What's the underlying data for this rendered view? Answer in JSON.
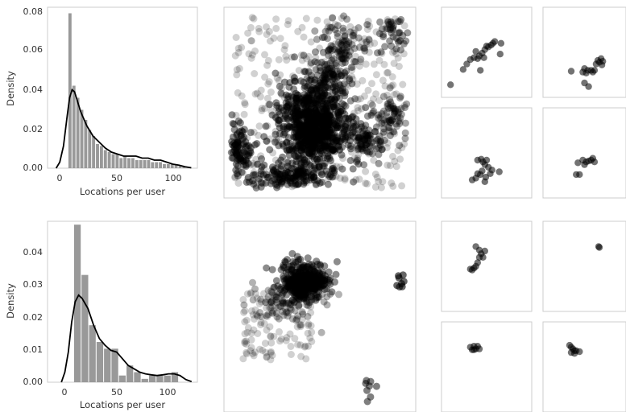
{
  "chart_data": [
    {
      "type": "bar",
      "panel": "top-left",
      "subtype": "histogram with KDE line",
      "xlabel": "Locations per user",
      "ylabel": "Density",
      "xlim": [
        -7,
        115
      ],
      "ylim": [
        0,
        0.08
      ],
      "xticks": [
        "0",
        "50",
        "100"
      ],
      "yticks": [
        "0.00",
        "0.02",
        "0.04",
        "0.06",
        "0.08"
      ],
      "bin_edges": [
        10,
        13.2,
        16.4,
        19.6,
        22.8,
        26,
        29.2,
        32.4,
        35.6,
        38.8,
        42,
        45.2,
        48.4,
        51.6,
        54.8,
        58,
        61.2,
        64.4,
        67.6,
        70.8,
        74,
        77.2,
        80.4,
        83.6,
        86.8,
        90,
        93.2,
        96.4,
        99.6,
        102.8,
        106
      ],
      "values": [
        0.077,
        0.041,
        0.035,
        0.029,
        0.024,
        0.019,
        0.016,
        0.012,
        0.011,
        0.009,
        0.008,
        0.007,
        0.007,
        0.005,
        0.006,
        0.005,
        0.005,
        0.004,
        0.004,
        0.004,
        0.004,
        0.003,
        0.003,
        0.003,
        0.002,
        0.002,
        0.002,
        0.002,
        0.001,
        0.001
      ],
      "kde": {
        "x": [
          0,
          3,
          6,
          9,
          11,
          13,
          15,
          17,
          20,
          25,
          30,
          35,
          40,
          45,
          50,
          55,
          60,
          65,
          70,
          75,
          80,
          85,
          90,
          95,
          100,
          105,
          110
        ],
        "y": [
          0.0,
          0.003,
          0.011,
          0.026,
          0.035,
          0.039,
          0.038,
          0.034,
          0.028,
          0.021,
          0.016,
          0.013,
          0.01,
          0.008,
          0.007,
          0.006,
          0.006,
          0.006,
          0.005,
          0.005,
          0.004,
          0.004,
          0.003,
          0.002,
          0.0015,
          0.0007,
          0.0002
        ]
      },
      "bar_color": "#999999",
      "line_color": "#000000",
      "grid": false
    },
    {
      "type": "bar",
      "panel": "bottom-left",
      "subtype": "histogram with KDE line",
      "xlabel": "Locations per user",
      "ylabel": "Density",
      "xlim": [
        -10,
        120
      ],
      "ylim": [
        0,
        0.048
      ],
      "xticks": [
        "0",
        "50",
        "100"
      ],
      "yticks": [
        "0.00",
        "0.01",
        "0.02",
        "0.03",
        "0.04"
      ],
      "bin_edges": [
        13,
        19.5,
        26,
        32.5,
        39,
        45.5,
        52,
        58.5,
        65,
        71.5,
        78,
        84.5,
        91,
        97.5,
        104
      ],
      "values": [
        0.047,
        0.032,
        0.017,
        0.012,
        0.01,
        0.01,
        0.002,
        0.005,
        0.003,
        0.001,
        0.002,
        0.002,
        0.002,
        0.003
      ],
      "kde": {
        "x": [
          2,
          5,
          8,
          11,
          14,
          17,
          20,
          25,
          30,
          35,
          40,
          45,
          50,
          55,
          60,
          65,
          70,
          75,
          80,
          85,
          90,
          95,
          100,
          105,
          110,
          115
        ],
        "y": [
          0.0,
          0.003,
          0.009,
          0.018,
          0.024,
          0.026,
          0.025,
          0.022,
          0.017,
          0.013,
          0.011,
          0.0095,
          0.009,
          0.007,
          0.005,
          0.004,
          0.003,
          0.0025,
          0.0022,
          0.002,
          0.0022,
          0.0025,
          0.0025,
          0.002,
          0.0008,
          0.0002
        ]
      },
      "bar_color": "#999999",
      "line_color": "#000000",
      "grid": false
    },
    {
      "type": "scatter",
      "panel": "top-middle",
      "axes": "hidden",
      "clusters": [
        {
          "cx": 0.45,
          "cy": 0.6,
          "sx": 0.08,
          "sy": 0.1,
          "n": 520,
          "alpha": 0.45
        },
        {
          "cx": 0.5,
          "cy": 0.66,
          "sx": 0.1,
          "sy": 0.08,
          "n": 260,
          "alpha": 0.45
        },
        {
          "cx": 0.55,
          "cy": 0.38,
          "sx": 0.06,
          "sy": 0.1,
          "n": 160,
          "alpha": 0.4
        },
        {
          "cx": 0.36,
          "cy": 0.88,
          "sx": 0.12,
          "sy": 0.03,
          "n": 160,
          "alpha": 0.45
        },
        {
          "cx": 0.08,
          "cy": 0.74,
          "sx": 0.03,
          "sy": 0.06,
          "n": 90,
          "alpha": 0.45
        },
        {
          "cx": 0.75,
          "cy": 0.69,
          "sx": 0.05,
          "sy": 0.05,
          "n": 80,
          "alpha": 0.4
        },
        {
          "cx": 0.88,
          "cy": 0.55,
          "sx": 0.04,
          "sy": 0.06,
          "n": 60,
          "alpha": 0.35
        },
        {
          "cx": 0.62,
          "cy": 0.18,
          "sx": 0.06,
          "sy": 0.06,
          "n": 60,
          "alpha": 0.35
        },
        {
          "cx": 0.88,
          "cy": 0.15,
          "sx": 0.05,
          "sy": 0.05,
          "n": 40,
          "alpha": 0.4
        },
        {
          "cx": 0.5,
          "cy": 0.5,
          "sx": 0.45,
          "sy": 0.45,
          "n": 360,
          "alpha": 0.18,
          "uniform": true
        }
      ]
    },
    {
      "type": "scatter",
      "panel": "bottom-middle",
      "axes": "hidden",
      "clusters": [
        {
          "cx": 0.42,
          "cy": 0.32,
          "sx": 0.06,
          "sy": 0.05,
          "n": 380,
          "alpha": 0.45
        },
        {
          "cx": 0.35,
          "cy": 0.42,
          "sx": 0.1,
          "sy": 0.06,
          "n": 90,
          "alpha": 0.3
        },
        {
          "cx": 0.92,
          "cy": 0.31,
          "sx": 0.01,
          "sy": 0.02,
          "n": 8,
          "alpha": 0.6
        },
        {
          "cx": 0.76,
          "cy": 0.88,
          "sx": 0.02,
          "sy": 0.04,
          "n": 8,
          "alpha": 0.5
        },
        {
          "cx": 0.28,
          "cy": 0.55,
          "sx": 0.18,
          "sy": 0.18,
          "n": 110,
          "alpha": 0.18,
          "uniform": true
        }
      ]
    },
    {
      "type": "scatter",
      "panel": "top-right-1",
      "axes": "hidden",
      "points": [
        [
          0.1,
          0.86
        ],
        [
          0.24,
          0.69
        ],
        [
          0.28,
          0.63
        ],
        [
          0.32,
          0.58
        ],
        [
          0.36,
          0.56
        ],
        [
          0.4,
          0.57
        ],
        [
          0.42,
          0.54
        ],
        [
          0.45,
          0.51
        ],
        [
          0.48,
          0.47
        ],
        [
          0.5,
          0.43
        ],
        [
          0.52,
          0.44
        ],
        [
          0.55,
          0.42
        ],
        [
          0.57,
          0.4
        ],
        [
          0.59,
          0.38
        ],
        [
          0.47,
          0.56
        ],
        [
          0.43,
          0.7
        ],
        [
          0.65,
          0.52
        ],
        [
          0.38,
          0.49
        ],
        [
          0.66,
          0.4
        ]
      ]
    },
    {
      "type": "scatter",
      "panel": "top-right-2",
      "axes": "hidden",
      "points": [
        [
          0.34,
          0.71
        ],
        [
          0.48,
          0.72
        ],
        [
          0.5,
          0.68
        ],
        [
          0.52,
          0.73
        ],
        [
          0.54,
          0.7
        ],
        [
          0.58,
          0.7
        ],
        [
          0.6,
          0.72
        ],
        [
          0.62,
          0.7
        ],
        [
          0.66,
          0.59
        ],
        [
          0.7,
          0.57
        ],
        [
          0.68,
          0.61
        ],
        [
          0.72,
          0.6
        ],
        [
          0.64,
          0.63
        ],
        [
          0.71,
          0.64
        ],
        [
          0.5,
          0.84
        ],
        [
          0.55,
          0.88
        ]
      ]
    },
    {
      "type": "scatter",
      "panel": "mid-right-1",
      "axes": "hidden",
      "points": [
        [
          0.4,
          0.58
        ],
        [
          0.44,
          0.57
        ],
        [
          0.46,
          0.6
        ],
        [
          0.48,
          0.63
        ],
        [
          0.5,
          0.58
        ],
        [
          0.52,
          0.66
        ],
        [
          0.4,
          0.73
        ],
        [
          0.43,
          0.74
        ],
        [
          0.45,
          0.7
        ],
        [
          0.49,
          0.77
        ],
        [
          0.54,
          0.73
        ],
        [
          0.56,
          0.69
        ],
        [
          0.34,
          0.8
        ],
        [
          0.38,
          0.78
        ],
        [
          0.64,
          0.71
        ],
        [
          0.48,
          0.82
        ]
      ]
    },
    {
      "type": "scatter",
      "panel": "mid-right-2",
      "axes": "hidden",
      "points": [
        [
          0.4,
          0.74
        ],
        [
          0.42,
          0.61
        ],
        [
          0.48,
          0.58
        ],
        [
          0.52,
          0.6
        ],
        [
          0.55,
          0.59
        ],
        [
          0.58,
          0.58
        ],
        [
          0.6,
          0.56
        ],
        [
          0.62,
          0.6
        ],
        [
          0.44,
          0.74
        ],
        [
          0.5,
          0.63
        ]
      ]
    },
    {
      "type": "scatter",
      "panel": "bottom-right-1",
      "axes": "hidden",
      "points": [
        [
          0.38,
          0.28
        ],
        [
          0.42,
          0.32
        ],
        [
          0.44,
          0.36
        ],
        [
          0.46,
          0.4
        ],
        [
          0.4,
          0.46
        ],
        [
          0.38,
          0.5
        ],
        [
          0.34,
          0.54
        ],
        [
          0.36,
          0.52
        ],
        [
          0.48,
          0.33
        ],
        [
          0.42,
          0.4
        ],
        [
          0.32,
          0.53
        ]
      ]
    },
    {
      "type": "scatter",
      "panel": "bottom-right-2",
      "axes": "hidden",
      "points": [
        [
          0.67,
          0.28
        ],
        [
          0.68,
          0.29
        ]
      ]
    },
    {
      "type": "scatter",
      "panel": "bottom-right-3",
      "axes": "hidden",
      "points": [
        [
          0.32,
          0.28
        ],
        [
          0.36,
          0.27
        ],
        [
          0.4,
          0.27
        ],
        [
          0.42,
          0.3
        ],
        [
          0.38,
          0.3
        ],
        [
          0.34,
          0.31
        ],
        [
          0.36,
          0.31
        ]
      ]
    },
    {
      "type": "scatter",
      "panel": "bottom-right-4",
      "axes": "hidden",
      "points": [
        [
          0.32,
          0.26
        ],
        [
          0.34,
          0.28
        ],
        [
          0.36,
          0.3
        ],
        [
          0.38,
          0.32
        ],
        [
          0.4,
          0.32
        ],
        [
          0.44,
          0.33
        ],
        [
          0.38,
          0.35
        ],
        [
          0.34,
          0.34
        ]
      ]
    }
  ]
}
